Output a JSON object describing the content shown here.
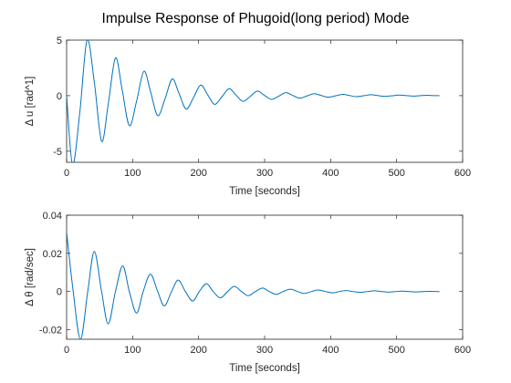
{
  "figure_title": "Impulse Response of Phugoid(long period) Mode",
  "chart_data": [
    {
      "type": "line",
      "title": "",
      "xlabel": "Time [seconds]",
      "ylabel": "Δ u [rad^1]",
      "xlim": [
        0,
        600
      ],
      "ylim": [
        -6,
        5
      ],
      "xticks": [
        0,
        100,
        200,
        300,
        400,
        500,
        600
      ],
      "xtick_labels": [
        "0",
        "100",
        "200",
        "300",
        "400",
        "500",
        "600"
      ],
      "yticks": [
        -5,
        0,
        5
      ],
      "ytick_labels": [
        "-5",
        "0",
        "5"
      ],
      "grid": false,
      "legend": "none",
      "color": "#0072bd",
      "series": [
        {
          "x": [
            0,
            9,
            20,
            31,
            42,
            53,
            63,
            74,
            84,
            95,
            106,
            117,
            127,
            138,
            149,
            160,
            170,
            181,
            192,
            203,
            213,
            224,
            235,
            246,
            256,
            267,
            278,
            289,
            299,
            310,
            321,
            332,
            342,
            353,
            364,
            375,
            385,
            396,
            407,
            418,
            428,
            439,
            450,
            461,
            471,
            482,
            493,
            504,
            514,
            525,
            536,
            547,
            557,
            565
          ],
          "y": [
            0,
            -6.2,
            -1.5,
            5.0,
            1.2,
            -4.1,
            -0.8,
            3.4,
            0.6,
            -2.7,
            -0.5,
            2.2,
            0.4,
            -1.8,
            -0.3,
            1.5,
            0.25,
            -1.2,
            -0.2,
            0.95,
            0.15,
            -0.78,
            -0.12,
            0.63,
            0.1,
            -0.51,
            -0.08,
            0.41,
            0.06,
            -0.33,
            -0.05,
            0.27,
            0.04,
            -0.22,
            -0.03,
            0.18,
            0.03,
            -0.14,
            -0.02,
            0.12,
            0.02,
            -0.09,
            -0.01,
            0.08,
            0.01,
            -0.06,
            -0.01,
            0.05,
            0.01,
            -0.04,
            0.0,
            0.03,
            0.0,
            0.0
          ]
        }
      ]
    },
    {
      "type": "line",
      "title": "",
      "xlabel": "Time [seconds]",
      "ylabel": "Δ θ [rad/sec]",
      "xlim": [
        0,
        600
      ],
      "ylim": [
        -0.025,
        0.04
      ],
      "xticks": [
        0,
        100,
        200,
        300,
        400,
        500,
        600
      ],
      "xtick_labels": [
        "0",
        "100",
        "200",
        "300",
        "400",
        "500",
        "600"
      ],
      "yticks": [
        -0.02,
        0,
        0.02,
        0.04
      ],
      "ytick_labels": [
        "-0.02",
        "0",
        "0.02",
        "0.04"
      ],
      "grid": false,
      "legend": "none",
      "color": "#0072bd",
      "series": [
        {
          "x": [
            0,
            10,
            21,
            32,
            42,
            53,
            63,
            74,
            85,
            95,
            106,
            116,
            127,
            138,
            148,
            159,
            169,
            180,
            191,
            201,
            212,
            222,
            233,
            244,
            254,
            265,
            275,
            286,
            297,
            307,
            318,
            328,
            339,
            350,
            360,
            371,
            381,
            392,
            403,
            413,
            424,
            434,
            445,
            456,
            466,
            477,
            487,
            498,
            509,
            519,
            530,
            540,
            551,
            562,
            565
          ],
          "y": [
            0.031,
            0.0,
            -0.025,
            0.0,
            0.021,
            0.0,
            -0.017,
            0.0,
            0.0135,
            0.0,
            -0.0113,
            0.0,
            0.0091,
            0.0,
            -0.0075,
            0.0,
            0.006,
            0.0,
            -0.005,
            0.0,
            0.0041,
            0.0,
            -0.0033,
            0.0,
            0.0027,
            0.0,
            -0.0022,
            0.0,
            0.0018,
            0.0,
            -0.0015,
            0.0,
            0.0012,
            0.0,
            -0.001,
            0.0,
            0.0008,
            0.0,
            -0.0007,
            0.0,
            0.0005,
            0.0,
            -0.0004,
            0.0,
            0.0004,
            0.0,
            -0.0003,
            0.0,
            0.0002,
            0.0,
            -0.0002,
            0.0,
            0.0001,
            0.0,
            0.0
          ]
        }
      ]
    }
  ]
}
